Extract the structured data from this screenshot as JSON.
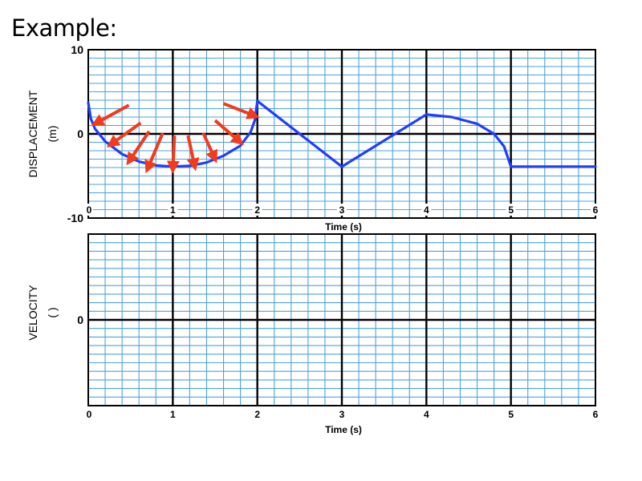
{
  "heading": "Example:",
  "chart_data": [
    {
      "type": "line",
      "ylabel": "DISPLACEMENT",
      "yunit": "(m)",
      "xlabel": "Time (s)",
      "xlim": [
        0,
        6
      ],
      "ylim": [
        -10,
        10
      ],
      "xticks": [
        "0",
        "1",
        "2",
        "3",
        "4",
        "5",
        "6"
      ],
      "yticks": [
        {
          "value": 10,
          "label": "10"
        },
        {
          "value": 0,
          "label": "0"
        },
        {
          "value": -10,
          "label": "-10"
        }
      ],
      "grid": true,
      "colors": {
        "grid": "#4ba3dd",
        "major": "#000000",
        "curve": "#1f3dff",
        "arrow": "#f23a1c"
      },
      "series": [
        {
          "values": [
            {
              "x": 0.0,
              "y": 3.7
            },
            {
              "x": 0.03,
              "y": 1.8
            },
            {
              "x": 0.08,
              "y": 0.6
            },
            {
              "x": 0.2,
              "y": -0.9
            },
            {
              "x": 0.4,
              "y": -2.4
            },
            {
              "x": 0.6,
              "y": -3.3
            },
            {
              "x": 0.8,
              "y": -3.75
            },
            {
              "x": 1.0,
              "y": -3.9
            },
            {
              "x": 1.2,
              "y": -3.8
            },
            {
              "x": 1.4,
              "y": -3.4
            },
            {
              "x": 1.6,
              "y": -2.6
            },
            {
              "x": 1.8,
              "y": -1.4
            },
            {
              "x": 1.92,
              "y": 0.2
            },
            {
              "x": 1.97,
              "y": 1.6
            },
            {
              "x": 2.0,
              "y": 3.9
            },
            {
              "x": 3.0,
              "y": -3.9
            },
            {
              "x": 4.0,
              "y": 2.3
            },
            {
              "x": 4.3,
              "y": 2.0
            },
            {
              "x": 4.6,
              "y": 1.2
            },
            {
              "x": 4.8,
              "y": 0.0
            },
            {
              "x": 4.92,
              "y": -1.5
            },
            {
              "x": 5.0,
              "y": -3.9
            },
            {
              "x": 6.0,
              "y": -3.9
            }
          ]
        }
      ],
      "annotations": {
        "type": "tangent-arrows",
        "arrows": [
          {
            "from": [
              0.48,
              3.4
            ],
            "to": [
              0.08,
              1.2
            ]
          },
          {
            "from": [
              0.62,
              1.3
            ],
            "to": [
              0.26,
              -1.3
            ]
          },
          {
            "from": [
              0.72,
              0.3
            ],
            "to": [
              0.48,
              -3.3
            ]
          },
          {
            "from": [
              0.88,
              0.1
            ],
            "to": [
              0.7,
              -4.2
            ]
          },
          {
            "from": [
              1.02,
              -0.2
            ],
            "to": [
              1.0,
              -4.2
            ]
          },
          {
            "from": [
              1.18,
              -0.2
            ],
            "to": [
              1.26,
              -3.9
            ]
          },
          {
            "from": [
              1.36,
              0.1
            ],
            "to": [
              1.5,
              -3.0
            ]
          },
          {
            "from": [
              1.5,
              1.6
            ],
            "to": [
              1.8,
              -1.0
            ]
          },
          {
            "from": [
              1.6,
              3.6
            ],
            "to": [
              1.98,
              2.1
            ]
          }
        ]
      }
    },
    {
      "type": "line",
      "ylabel": "VELOCITY",
      "yunit": "(     )",
      "xlabel": "Time (s)",
      "xlim": [
        0,
        6
      ],
      "xticks": [
        "0",
        "1",
        "2",
        "3",
        "4",
        "5",
        "6"
      ],
      "yticks": [
        {
          "value": 0,
          "label": "0"
        }
      ],
      "grid": true,
      "series": []
    }
  ]
}
